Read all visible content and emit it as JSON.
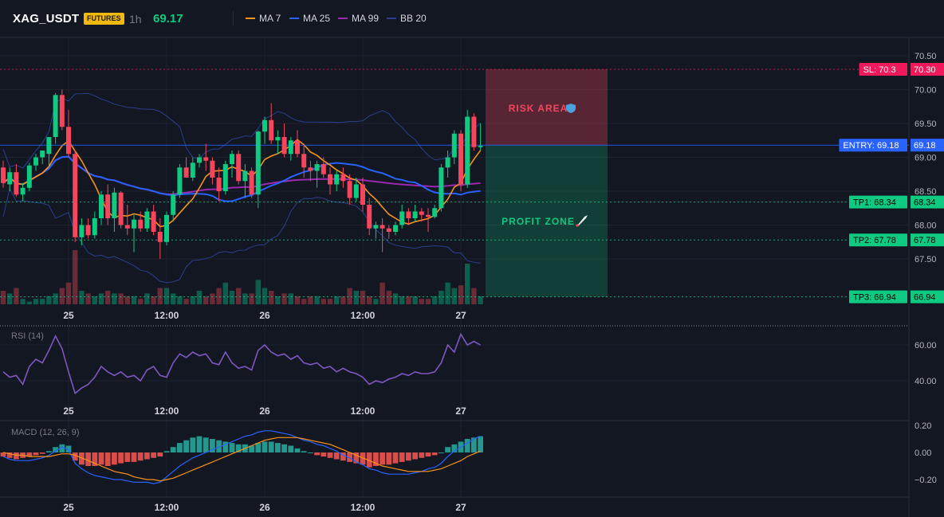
{
  "header": {
    "symbol": "XAG_USDT",
    "badge": "FUTURES",
    "timeframe": "1h",
    "last_price": "69.17",
    "legend": [
      {
        "label": "MA 7",
        "color": "#f7931a"
      },
      {
        "label": "MA 25",
        "color": "#2962ff"
      },
      {
        "label": "MA 99",
        "color": "#9c27b0"
      },
      {
        "label": "BB 20",
        "color": "#2a3f8f"
      }
    ]
  },
  "colors": {
    "up": "#0ecb81",
    "down": "#f6465d",
    "bg": "#131722",
    "grid": "#1e222d",
    "text": "#b2b5be"
  },
  "price_axis": {
    "ticks": [
      "70.50",
      "70.00",
      "69.50",
      "69.00",
      "68.50",
      "68.00",
      "67.50"
    ],
    "min": 67.0,
    "max": 70.75
  },
  "time_axis": {
    "labels": [
      "25",
      "12:00",
      "26",
      "12:00",
      "27"
    ]
  },
  "levels": [
    {
      "label": "SL: 70.3",
      "value": "70.30",
      "price": 70.3,
      "color": "#f0195a",
      "style": "dotted"
    },
    {
      "label": "ENTRY: 69.18",
      "value": "69.18",
      "price": 69.18,
      "color": "#2962ff",
      "style": "solid"
    },
    {
      "label": "TP1: 68.34",
      "value": "68.34",
      "price": 68.34,
      "color": "#0ecb81",
      "style": "dotted"
    },
    {
      "label": "TP2: 67.78",
      "value": "67.78",
      "price": 67.78,
      "color": "#0ecb81",
      "style": "dotted"
    },
    {
      "label": "TP3: 66.94",
      "value": "66.94",
      "price": 66.94,
      "color": "#0ecb81",
      "style": "dotted"
    }
  ],
  "zones": {
    "risk_label": "RISK AREA",
    "profit_label": "PROFIT ZONE",
    "risk_icon": "shield-icon",
    "profit_icon": "rocket-icon"
  },
  "candles": [
    [
      68.85,
      68.95,
      68.55,
      68.62
    ],
    [
      68.6,
      68.85,
      68.5,
      68.78
    ],
    [
      68.78,
      68.9,
      68.42,
      68.45
    ],
    [
      68.45,
      68.62,
      68.35,
      68.55
    ],
    [
      68.55,
      68.92,
      68.5,
      68.88
    ],
    [
      68.88,
      69.05,
      68.8,
      69.0
    ],
    [
      69.0,
      69.1,
      68.9,
      69.1
    ],
    [
      69.05,
      69.3,
      68.85,
      69.3
    ],
    [
      69.3,
      69.95,
      69.2,
      69.92
    ],
    [
      69.92,
      70.0,
      69.4,
      69.45
    ],
    [
      69.45,
      69.7,
      69.0,
      69.05
    ],
    [
      69.05,
      69.1,
      67.75,
      67.82
    ],
    [
      67.82,
      68.1,
      67.7,
      68.0
    ],
    [
      68.0,
      68.1,
      67.8,
      67.85
    ],
    [
      67.85,
      68.2,
      67.8,
      68.1
    ],
    [
      68.1,
      68.5,
      68.0,
      68.45
    ],
    [
      68.45,
      68.6,
      68.0,
      68.1
    ],
    [
      68.1,
      68.55,
      67.9,
      68.48
    ],
    [
      68.48,
      68.5,
      67.95,
      68.0
    ],
    [
      68.0,
      68.3,
      67.85,
      67.95
    ],
    [
      67.95,
      68.15,
      67.6,
      68.08
    ],
    [
      68.08,
      68.2,
      67.9,
      67.95
    ],
    [
      67.95,
      68.25,
      67.9,
      68.2
    ],
    [
      68.2,
      68.3,
      67.85,
      67.9
    ],
    [
      67.9,
      68.1,
      67.5,
      67.75
    ],
    [
      67.75,
      68.2,
      67.7,
      68.15
    ],
    [
      68.15,
      68.5,
      68.05,
      68.45
    ],
    [
      68.45,
      68.9,
      68.4,
      68.85
    ],
    [
      68.85,
      69.0,
      68.7,
      68.7
    ],
    [
      68.7,
      69.0,
      68.65,
      68.92
    ],
    [
      68.92,
      69.05,
      68.85,
      69.0
    ],
    [
      69.0,
      69.2,
      68.8,
      68.95
    ],
    [
      68.95,
      69.0,
      68.6,
      68.7
    ],
    [
      68.7,
      68.85,
      68.35,
      68.5
    ],
    [
      68.5,
      68.95,
      68.45,
      68.9
    ],
    [
      68.9,
      69.1,
      68.7,
      69.05
    ],
    [
      69.05,
      69.1,
      68.6,
      68.65
    ],
    [
      68.65,
      68.9,
      68.4,
      68.8
    ],
    [
      68.8,
      68.85,
      68.4,
      68.45
    ],
    [
      68.45,
      69.4,
      68.25,
      69.38
    ],
    [
      69.38,
      69.6,
      69.2,
      69.55
    ],
    [
      69.55,
      69.8,
      69.2,
      69.25
    ],
    [
      69.25,
      69.4,
      69.05,
      69.3
    ],
    [
      69.3,
      69.5,
      69.0,
      69.05
    ],
    [
      69.05,
      69.3,
      68.95,
      69.25
    ],
    [
      69.25,
      69.4,
      69.0,
      69.05
    ],
    [
      69.05,
      69.2,
      68.7,
      68.85
    ],
    [
      68.85,
      68.95,
      68.65,
      68.8
    ],
    [
      68.8,
      68.95,
      68.55,
      68.9
    ],
    [
      68.9,
      69.0,
      68.7,
      68.75
    ],
    [
      68.75,
      68.85,
      68.45,
      68.6
    ],
    [
      68.6,
      68.8,
      68.5,
      68.75
    ],
    [
      68.75,
      68.85,
      68.55,
      68.65
    ],
    [
      68.65,
      68.75,
      68.3,
      68.4
    ],
    [
      68.4,
      68.7,
      68.35,
      68.6
    ],
    [
      68.6,
      68.7,
      68.2,
      68.3
    ],
    [
      68.3,
      68.4,
      67.85,
      67.95
    ],
    [
      67.95,
      68.05,
      67.8,
      68.0
    ],
    [
      68.0,
      68.1,
      67.6,
      67.95
    ],
    [
      67.95,
      68.0,
      67.8,
      67.9
    ],
    [
      67.9,
      68.05,
      67.85,
      68.0
    ],
    [
      68.0,
      68.3,
      67.95,
      68.2
    ],
    [
      68.2,
      68.25,
      68.0,
      68.1
    ],
    [
      68.1,
      68.3,
      68.05,
      68.2
    ],
    [
      68.2,
      68.25,
      68.05,
      68.15
    ],
    [
      68.15,
      68.25,
      67.9,
      68.12
    ],
    [
      68.12,
      68.3,
      68.1,
      68.25
    ],
    [
      68.25,
      68.9,
      68.2,
      68.85
    ],
    [
      68.85,
      69.1,
      68.7,
      69.0
    ],
    [
      69.0,
      69.4,
      68.9,
      69.35
    ],
    [
      69.35,
      69.4,
      68.5,
      68.6
    ],
    [
      68.6,
      69.7,
      68.55,
      69.6
    ],
    [
      69.6,
      69.65,
      69.1,
      69.15
    ],
    [
      69.15,
      69.5,
      69.1,
      69.17
    ]
  ],
  "volume": [
    5,
    4,
    6,
    2,
    1,
    2,
    2,
    3,
    4,
    6,
    8,
    20,
    5,
    4,
    3,
    4,
    5,
    4,
    4,
    3,
    3,
    2,
    4,
    3,
    6,
    6,
    4,
    3,
    2,
    3,
    5,
    3,
    4,
    6,
    8,
    5,
    6,
    4,
    4,
    9,
    6,
    5,
    3,
    4,
    4,
    3,
    2,
    3,
    3,
    2,
    2,
    3,
    3,
    6,
    5,
    5,
    3,
    2,
    8,
    5,
    4,
    3,
    3,
    3,
    2,
    2,
    3,
    5,
    8,
    6,
    7,
    15,
    6,
    3
  ],
  "rsi": {
    "label": "RSI (14)",
    "ticks": [
      "60.00",
      "40.00"
    ],
    "values": [
      45,
      42,
      43,
      38,
      48,
      52,
      50,
      57,
      65,
      58,
      45,
      33,
      36,
      38,
      42,
      48,
      45,
      43,
      45,
      42,
      43,
      40,
      46,
      48,
      43,
      42,
      50,
      55,
      53,
      56,
      54,
      55,
      50,
      49,
      56,
      50,
      47,
      48,
      46,
      57,
      60,
      56,
      54,
      55,
      52,
      54,
      50,
      49,
      50,
      47,
      48,
      45,
      47,
      45,
      44,
      42,
      38,
      40,
      39,
      41,
      42,
      44,
      43,
      45,
      44,
      44,
      45,
      50,
      60,
      56,
      66,
      60,
      62,
      60
    ]
  },
  "macd": {
    "label": "MACD (12, 26, 9)",
    "ticks": [
      "0.20",
      "0.00",
      "−0.20"
    ],
    "hist": [
      -0.03,
      -0.04,
      -0.05,
      -0.04,
      -0.03,
      -0.02,
      -0.01,
      0.01,
      0.04,
      0.06,
      0.05,
      -0.06,
      -0.09,
      -0.1,
      -0.1,
      -0.09,
      -0.1,
      -0.09,
      -0.08,
      -0.07,
      -0.07,
      -0.06,
      -0.05,
      -0.04,
      -0.03,
      0.01,
      0.04,
      0.07,
      0.09,
      0.11,
      0.12,
      0.11,
      0.1,
      0.09,
      0.08,
      0.07,
      0.06,
      0.06,
      0.05,
      0.07,
      0.08,
      0.08,
      0.07,
      0.06,
      0.05,
      0.03,
      0.01,
      0.0,
      -0.02,
      -0.03,
      -0.04,
      -0.05,
      -0.06,
      -0.07,
      -0.08,
      -0.09,
      -0.11,
      -0.1,
      -0.09,
      -0.09,
      -0.08,
      -0.07,
      -0.06,
      -0.05,
      -0.04,
      -0.03,
      -0.02,
      0.0,
      0.04,
      0.06,
      0.08,
      0.1,
      0.11,
      0.12
    ],
    "macd": [
      -0.03,
      -0.05,
      -0.06,
      -0.06,
      -0.06,
      -0.05,
      -0.04,
      -0.02,
      0.01,
      0.04,
      0.02,
      -0.08,
      -0.12,
      -0.15,
      -0.17,
      -0.18,
      -0.19,
      -0.2,
      -0.2,
      -0.21,
      -0.22,
      -0.22,
      -0.22,
      -0.23,
      -0.22,
      -0.18,
      -0.14,
      -0.1,
      -0.07,
      -0.04,
      -0.02,
      0.0,
      0.02,
      0.04,
      0.06,
      0.08,
      0.1,
      0.12,
      0.13,
      0.15,
      0.16,
      0.16,
      0.15,
      0.14,
      0.13,
      0.11,
      0.09,
      0.08,
      0.06,
      0.05,
      0.03,
      0.01,
      -0.02,
      -0.04,
      -0.07,
      -0.09,
      -0.12,
      -0.13,
      -0.15,
      -0.16,
      -0.16,
      -0.16,
      -0.16,
      -0.15,
      -0.14,
      -0.12,
      -0.11,
      -0.08,
      -0.03,
      0.01,
      0.04,
      0.07,
      0.1,
      0.12
    ],
    "signal": [
      0.0,
      -0.01,
      -0.02,
      -0.02,
      -0.03,
      -0.03,
      -0.03,
      -0.03,
      -0.02,
      -0.01,
      -0.01,
      -0.02,
      -0.04,
      -0.06,
      -0.08,
      -0.1,
      -0.12,
      -0.14,
      -0.15,
      -0.16,
      -0.18,
      -0.19,
      -0.2,
      -0.2,
      -0.21,
      -0.2,
      -0.19,
      -0.17,
      -0.15,
      -0.13,
      -0.11,
      -0.09,
      -0.07,
      -0.05,
      -0.03,
      -0.01,
      0.01,
      0.03,
      0.05,
      0.07,
      0.09,
      0.1,
      0.11,
      0.11,
      0.11,
      0.11,
      0.1,
      0.09,
      0.08,
      0.07,
      0.06,
      0.04,
      0.02,
      0.0,
      -0.02,
      -0.04,
      -0.06,
      -0.08,
      -0.1,
      -0.11,
      -0.12,
      -0.13,
      -0.14,
      -0.14,
      -0.14,
      -0.14,
      -0.13,
      -0.12,
      -0.1,
      -0.08,
      -0.06,
      -0.03,
      -0.01,
      0.01
    ]
  }
}
